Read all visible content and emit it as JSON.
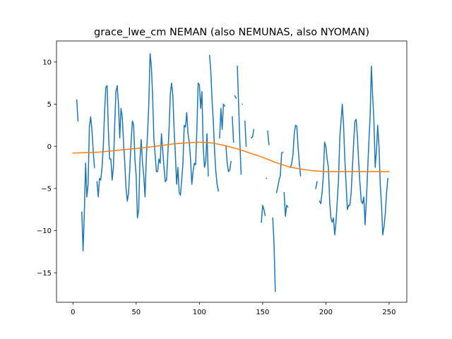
{
  "chart_data": {
    "type": "line",
    "title": "grace_lwe_cm NEMAN (also NEMUNAS, also NYOMAN)",
    "xlabel": "",
    "ylabel": "",
    "xlim": [
      -13,
      264
    ],
    "ylim": [
      -18.5,
      12.5
    ],
    "xticks": [
      0,
      50,
      100,
      150,
      200,
      250
    ],
    "yticks": [
      -15,
      -10,
      -5,
      0,
      5,
      10
    ],
    "grid": false,
    "legend": "none",
    "series": [
      {
        "color": "#1f77b4",
        "segments": [
          [
            [
              3,
              5.5
            ],
            [
              4,
              3.0
            ]
          ],
          [
            [
              7,
              -7.8
            ],
            [
              8,
              -12.4
            ],
            [
              9,
              -8.0
            ],
            [
              10,
              -2.0
            ],
            [
              11,
              -6.0
            ],
            [
              12,
              -4.5
            ],
            [
              13,
              2.3
            ],
            [
              14,
              3.5
            ],
            [
              15,
              2.0
            ],
            [
              16,
              -0.5
            ],
            [
              17,
              -2.5
            ]
          ],
          [
            [
              19,
              -4.2
            ],
            [
              20,
              -6.0
            ],
            [
              21,
              -3.8
            ],
            [
              22,
              -4.0
            ],
            [
              23,
              -2.5
            ],
            [
              24,
              0.0
            ],
            [
              25,
              4.0
            ],
            [
              26,
              7.0
            ],
            [
              27,
              7.2
            ],
            [
              28,
              2.0
            ],
            [
              29,
              -1.5
            ],
            [
              30,
              -1.5
            ],
            [
              31,
              -4.0
            ],
            [
              32,
              -2.5
            ],
            [
              33,
              2.5
            ],
            [
              34,
              6.5
            ],
            [
              35,
              7.2
            ],
            [
              36,
              5.0
            ],
            [
              37,
              1.0
            ],
            [
              38,
              4.5
            ],
            [
              39,
              3.5
            ],
            [
              40,
              0.5
            ],
            [
              41,
              -2.0
            ],
            [
              42,
              -5.0
            ],
            [
              43,
              -6.5
            ],
            [
              44,
              -5.5
            ],
            [
              45,
              -2.5
            ],
            [
              46,
              0.5
            ],
            [
              47,
              3.0
            ],
            [
              48,
              2.5
            ],
            [
              49,
              -1.5
            ],
            [
              50,
              -3.5
            ],
            [
              51,
              -8.5
            ],
            [
              52,
              -7.5
            ],
            [
              53,
              -1.5
            ],
            [
              54,
              0.8
            ],
            [
              55,
              -2.0
            ],
            [
              56,
              -3.5
            ],
            [
              57,
              -6.0
            ],
            [
              58,
              -1.5
            ],
            [
              59,
              1.5
            ],
            [
              60,
              5.0
            ],
            [
              61,
              11.0
            ],
            [
              62,
              9.5
            ],
            [
              63,
              6.0
            ],
            [
              64,
              1.0
            ],
            [
              65,
              -1.0
            ],
            [
              66,
              -3.0
            ],
            [
              67,
              -3.0
            ],
            [
              68,
              -1.5
            ],
            [
              69,
              -2.0
            ],
            [
              70,
              1.5
            ],
            [
              71,
              -0.5
            ],
            [
              72,
              -2.5
            ],
            [
              73,
              -4.2
            ],
            [
              74,
              -4.0
            ],
            [
              75,
              -1.0
            ],
            [
              76,
              2.0
            ],
            [
              77,
              6.2
            ],
            [
              78,
              7.5
            ],
            [
              79,
              6.0
            ],
            [
              80,
              2.0
            ],
            [
              81,
              -1.0
            ],
            [
              82,
              -4.5
            ],
            [
              83,
              -2.5
            ],
            [
              84,
              -5.5
            ],
            [
              85,
              -5.8
            ],
            [
              86,
              -4.0
            ],
            [
              87,
              -2.0
            ],
            [
              88,
              2.5
            ],
            [
              89,
              2.3
            ],
            [
              90,
              4.0
            ],
            [
              91,
              1.5
            ],
            [
              92,
              0.5
            ],
            [
              93,
              -1.5
            ],
            [
              94,
              -4.5
            ],
            [
              95,
              -3.0
            ],
            [
              96,
              -2.0
            ],
            [
              97,
              -2.2
            ],
            [
              98,
              2.0
            ],
            [
              99,
              7.5
            ],
            [
              100,
              7.3
            ],
            [
              101,
              4.5
            ],
            [
              102,
              6.5
            ],
            [
              103,
              0.0
            ],
            [
              104,
              -2.5
            ],
            [
              105,
              -1.8
            ],
            [
              106,
              1.5
            ],
            [
              107,
              -3.5
            ]
          ],
          [
            [
              108,
              10.8
            ],
            [
              109,
              9.0
            ],
            [
              110,
              5.5
            ],
            [
              111,
              3.0
            ],
            [
              112,
              -0.5
            ],
            [
              113,
              -3.0
            ],
            [
              114,
              -4.5
            ],
            [
              115,
              -5.3
            ]
          ],
          [
            [
              116,
              1.0
            ],
            [
              117,
              4.5
            ],
            [
              118,
              2.0
            ],
            [
              119,
              5.0
            ],
            [
              120,
              4.8
            ]
          ],
          [
            [
              121,
              0.0
            ],
            [
              122,
              -2.0
            ],
            [
              123,
              -3.0
            ],
            [
              124,
              -2.8
            ],
            [
              125,
              -1.8
            ]
          ],
          [
            [
              126,
              3.5
            ],
            [
              127,
              0.5
            ]
          ],
          [
            [
              128,
              6.0
            ],
            [
              129,
              5.7
            ]
          ],
          [
            [
              130,
              9.5
            ],
            [
              131,
              5.0
            ],
            [
              132,
              0.5
            ],
            [
              133,
              -3.3
            ]
          ],
          [
            [
              134,
              5.0
            ]
          ],
          [
            [
              136,
              3.0
            ],
            [
              137,
              0.0
            ]
          ],
          [
            [
              141,
              1.0
            ],
            [
              142,
              1.1
            ],
            [
              143,
              2.0
            ]
          ],
          [
            [
              149,
              -9.0
            ],
            [
              150,
              -7.0
            ],
            [
              151,
              -7.5
            ],
            [
              152,
              -8.2
            ]
          ],
          [
            [
              153,
              -3.8
            ]
          ],
          [
            [
              154,
              1.8
            ],
            [
              155,
              0.2
            ]
          ],
          [
            [
              158,
              -8.5
            ],
            [
              159,
              -11.5
            ],
            [
              160,
              -17.2
            ]
          ],
          [
            [
              161,
              -5.5
            ],
            [
              162,
              -4.8
            ],
            [
              163,
              -4.0
            ],
            [
              164,
              -3.5
            ],
            [
              165,
              -0.8
            ],
            [
              166,
              -0.7
            ]
          ],
          [
            [
              167,
              -5.5
            ],
            [
              168,
              -8.3
            ],
            [
              169,
              -7.0
            ],
            [
              170,
              -7.2
            ]
          ],
          [
            [
              172,
              -2.5
            ],
            [
              173,
              -2.0
            ],
            [
              174,
              -1.0
            ],
            [
              175,
              1.5
            ],
            [
              176,
              2.5
            ],
            [
              177,
              2.4
            ],
            [
              178,
              0.0
            ],
            [
              179,
              -2.0
            ],
            [
              180,
              -3.5
            ]
          ],
          [
            [
              192,
              -5.0
            ],
            [
              193,
              -4.2
            ]
          ],
          [
            [
              195,
              -6.5
            ],
            [
              196,
              -6.8
            ],
            [
              197,
              -5.5
            ],
            [
              198,
              -3.5
            ],
            [
              199,
              0.5
            ],
            [
              200,
              0.0
            ],
            [
              201,
              -1.5
            ],
            [
              202,
              -2.5
            ],
            [
              203,
              -6.5
            ],
            [
              204,
              -8.5
            ],
            [
              205,
              -9.0
            ],
            [
              206,
              -8.5
            ],
            [
              207,
              -10.5
            ],
            [
              208,
              -9.0
            ],
            [
              209,
              -6.5
            ],
            [
              210,
              -4.0
            ],
            [
              211,
              1.0
            ],
            [
              212,
              3.0
            ],
            [
              213,
              5.0
            ],
            [
              214,
              2.5
            ],
            [
              215,
              -1.5
            ],
            [
              216,
              -4.5
            ],
            [
              217,
              -7.5
            ],
            [
              218,
              -7.0
            ],
            [
              219,
              -7.0
            ],
            [
              220,
              -5.5
            ],
            [
              221,
              -2.5
            ],
            [
              222,
              0.5
            ],
            [
              223,
              3.0
            ],
            [
              224,
              3.2
            ],
            [
              225,
              1.0
            ],
            [
              226,
              -2.0
            ],
            [
              227,
              -4.5
            ],
            [
              228,
              -6.5
            ],
            [
              229,
              -6.8
            ],
            [
              230,
              -6.0
            ],
            [
              231,
              -9.3
            ],
            [
              232,
              -6.5
            ],
            [
              233,
              -3.0
            ],
            [
              234,
              0.5
            ],
            [
              235,
              3.5
            ],
            [
              236,
              9.5
            ],
            [
              237,
              6.0
            ],
            [
              238,
              3.0
            ],
            [
              239,
              -2.5
            ],
            [
              240,
              -0.5
            ],
            [
              241,
              2.5
            ],
            [
              242,
              0.0
            ],
            [
              243,
              -4.5
            ],
            [
              244,
              -7.0
            ],
            [
              245,
              -10.5
            ],
            [
              246,
              -9.5
            ],
            [
              247,
              -8.0
            ],
            [
              248,
              -5.5
            ],
            [
              249,
              -3.8
            ]
          ]
        ]
      },
      {
        "color": "#ff7f0e",
        "segments": [
          [
            [
              0,
              -0.8
            ],
            [
              20,
              -0.7
            ],
            [
              40,
              -0.4
            ],
            [
              60,
              -0.1
            ],
            [
              80,
              0.3
            ],
            [
              90,
              0.4
            ],
            [
              100,
              0.5
            ],
            [
              110,
              0.4
            ],
            [
              120,
              0.1
            ],
            [
              130,
              -0.3
            ],
            [
              140,
              -0.8
            ],
            [
              150,
              -1.3
            ],
            [
              160,
              -1.9
            ],
            [
              170,
              -2.4
            ],
            [
              180,
              -2.7
            ],
            [
              190,
              -2.9
            ],
            [
              200,
              -3.0
            ],
            [
              210,
              -3.0
            ],
            [
              220,
              -3.0
            ],
            [
              230,
              -3.0
            ],
            [
              240,
              -3.0
            ],
            [
              250,
              -3.0
            ]
          ]
        ]
      }
    ]
  }
}
